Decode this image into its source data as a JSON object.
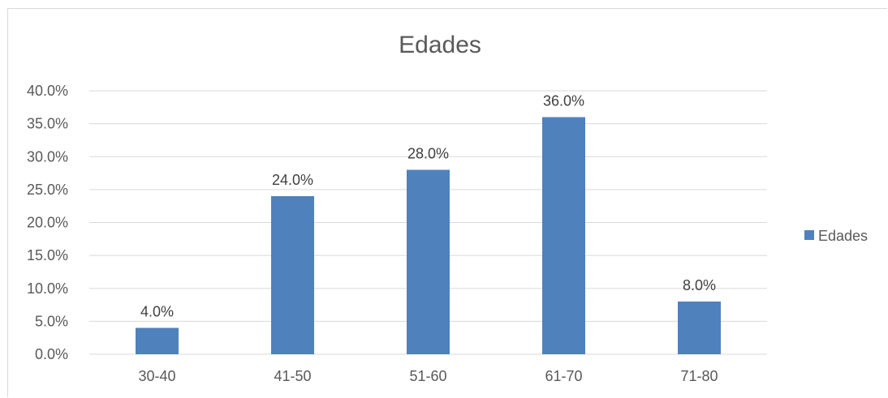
{
  "chart_data": {
    "type": "bar",
    "title": "Edades",
    "xlabel": "",
    "ylabel": "",
    "categories": [
      "30-40",
      "41-50",
      "51-60",
      "61-70",
      "71-80"
    ],
    "series": [
      {
        "name": "Edades",
        "values": [
          4.0,
          24.0,
          28.0,
          36.0,
          8.0
        ],
        "labels": [
          "4.0%",
          "24.0%",
          "28.0%",
          "36.0%",
          "8.0%"
        ],
        "color": "#4f81bd"
      }
    ],
    "ylim": [
      0,
      40
    ],
    "yticks": [
      0,
      5,
      10,
      15,
      20,
      25,
      30,
      35,
      40
    ],
    "ytick_labels": [
      "0.0%",
      "5.0%",
      "10.0%",
      "15.0%",
      "20.0%",
      "25.0%",
      "30.0%",
      "35.0%",
      "40.0%"
    ],
    "grid": true,
    "legend_position": "right",
    "colors": {
      "bar": "#4f81bd",
      "grid": "#d9d9d9",
      "text": "#595959"
    }
  }
}
